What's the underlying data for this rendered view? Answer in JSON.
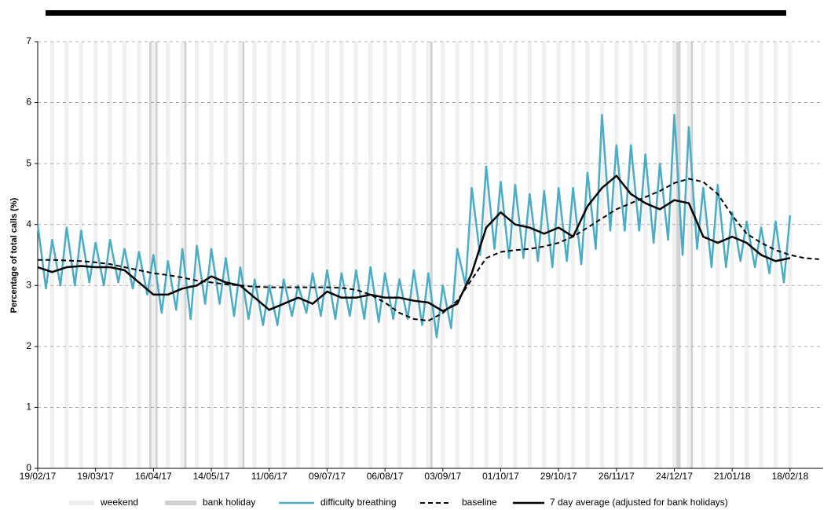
{
  "chart_data": {
    "type": "line",
    "y_label": "Percentage of total calls (%)",
    "ylim": [
      0,
      7
    ],
    "yticks": [
      0,
      1,
      2,
      3,
      4,
      5,
      6,
      7
    ],
    "grid": true,
    "xlim": [
      "2017-02-19",
      "2018-03-06"
    ],
    "xticks": [
      {
        "value": "2017-02-19",
        "label": "19/02/17"
      },
      {
        "value": "2017-03-19",
        "label": "19/03/17"
      },
      {
        "value": "2017-04-16",
        "label": "16/04/17"
      },
      {
        "value": "2017-05-14",
        "label": "14/05/17"
      },
      {
        "value": "2017-06-11",
        "label": "11/06/17"
      },
      {
        "value": "2017-07-09",
        "label": "09/07/17"
      },
      {
        "value": "2017-08-06",
        "label": "06/08/17"
      },
      {
        "value": "2017-09-03",
        "label": "03/09/17"
      },
      {
        "value": "2017-10-01",
        "label": "01/10/17"
      },
      {
        "value": "2017-10-29",
        "label": "29/10/17"
      },
      {
        "value": "2017-11-26",
        "label": "26/11/17"
      },
      {
        "value": "2017-12-24",
        "label": "24/12/17"
      },
      {
        "value": "2018-01-21",
        "label": "21/01/18"
      },
      {
        "value": "2018-02-18",
        "label": "18/02/18"
      }
    ],
    "shading": [
      {
        "name": "weekend",
        "color": "#f0f0f0",
        "x": [
          "2017-02-25",
          "2017-03-04",
          "2017-03-11",
          "2017-03-18",
          "2017-03-25",
          "2017-04-01",
          "2017-04-08",
          "2017-04-15",
          "2017-04-22",
          "2017-04-29",
          "2017-05-06",
          "2017-05-13",
          "2017-05-20",
          "2017-05-27",
          "2017-06-03",
          "2017-06-10",
          "2017-06-17",
          "2017-06-24",
          "2017-07-01",
          "2017-07-08",
          "2017-07-15",
          "2017-07-22",
          "2017-07-29",
          "2017-08-05",
          "2017-08-12",
          "2017-08-19",
          "2017-08-26",
          "2017-09-02",
          "2017-09-09",
          "2017-09-16",
          "2017-09-23",
          "2017-09-30",
          "2017-10-07",
          "2017-10-14",
          "2017-10-21",
          "2017-10-28",
          "2017-11-04",
          "2017-11-11",
          "2017-11-18",
          "2017-11-25",
          "2017-12-02",
          "2017-12-09",
          "2017-12-16",
          "2017-12-23",
          "2017-12-30",
          "2018-01-06",
          "2018-01-13",
          "2018-01-20",
          "2018-01-27",
          "2018-02-03",
          "2018-02-10",
          "2018-02-17"
        ]
      },
      {
        "name": "bank holiday",
        "color": "#d0d0d0",
        "x": [
          "2017-04-14",
          "2017-04-17",
          "2017-05-01",
          "2017-05-29",
          "2017-08-28",
          "2017-12-25",
          "2017-12-26",
          "2018-01-01"
        ]
      }
    ],
    "series": [
      {
        "name": "difficulty breathing",
        "color": "#4bacc6",
        "width": 2.5,
        "dash": false,
        "x": [
          "2017-02-19",
          "2017-02-23",
          "2017-02-26",
          "2017-03-02",
          "2017-03-05",
          "2017-03-09",
          "2017-03-12",
          "2017-03-16",
          "2017-03-19",
          "2017-03-23",
          "2017-03-26",
          "2017-03-30",
          "2017-04-02",
          "2017-04-06",
          "2017-04-09",
          "2017-04-13",
          "2017-04-16",
          "2017-04-20",
          "2017-04-23",
          "2017-04-27",
          "2017-04-30",
          "2017-05-04",
          "2017-05-07",
          "2017-05-11",
          "2017-05-14",
          "2017-05-18",
          "2017-05-21",
          "2017-05-25",
          "2017-05-28",
          "2017-06-01",
          "2017-06-04",
          "2017-06-08",
          "2017-06-11",
          "2017-06-15",
          "2017-06-18",
          "2017-06-22",
          "2017-06-25",
          "2017-06-29",
          "2017-07-02",
          "2017-07-06",
          "2017-07-09",
          "2017-07-13",
          "2017-07-16",
          "2017-07-20",
          "2017-07-23",
          "2017-07-27",
          "2017-07-30",
          "2017-08-03",
          "2017-08-06",
          "2017-08-10",
          "2017-08-13",
          "2017-08-17",
          "2017-08-20",
          "2017-08-24",
          "2017-08-27",
          "2017-08-31",
          "2017-09-03",
          "2017-09-07",
          "2017-09-10",
          "2017-09-14",
          "2017-09-17",
          "2017-09-21",
          "2017-09-24",
          "2017-09-28",
          "2017-10-01",
          "2017-10-05",
          "2017-10-08",
          "2017-10-12",
          "2017-10-15",
          "2017-10-19",
          "2017-10-22",
          "2017-10-26",
          "2017-10-29",
          "2017-11-02",
          "2017-11-05",
          "2017-11-09",
          "2017-11-12",
          "2017-11-16",
          "2017-11-19",
          "2017-11-23",
          "2017-11-26",
          "2017-11-30",
          "2017-12-03",
          "2017-12-07",
          "2017-12-10",
          "2017-12-14",
          "2017-12-17",
          "2017-12-21",
          "2017-12-24",
          "2017-12-28",
          "2017-12-31",
          "2018-01-04",
          "2018-01-07",
          "2018-01-11",
          "2018-01-14",
          "2018-01-18",
          "2018-01-21",
          "2018-01-25",
          "2018-01-28",
          "2018-02-01",
          "2018-02-04",
          "2018-02-08",
          "2018-02-11",
          "2018-02-15",
          "2018-02-18"
        ],
        "values": [
          4.0,
          2.95,
          3.75,
          3.0,
          3.95,
          3.0,
          3.9,
          3.05,
          3.7,
          3.0,
          3.75,
          3.05,
          3.6,
          2.95,
          3.55,
          2.85,
          3.5,
          2.55,
          3.4,
          2.6,
          3.6,
          2.45,
          3.65,
          2.7,
          3.6,
          2.7,
          3.45,
          2.5,
          3.3,
          2.45,
          3.1,
          2.35,
          3.0,
          2.35,
          3.1,
          2.5,
          3.0,
          2.55,
          3.2,
          2.5,
          3.25,
          2.45,
          3.2,
          2.5,
          3.25,
          2.45,
          3.3,
          2.4,
          3.2,
          2.45,
          3.1,
          2.45,
          3.25,
          2.35,
          3.2,
          2.15,
          3.0,
          2.3,
          3.6,
          3.0,
          4.6,
          3.5,
          4.95,
          3.6,
          4.7,
          3.45,
          4.65,
          3.45,
          4.5,
          3.4,
          4.55,
          3.3,
          4.6,
          3.4,
          4.6,
          3.35,
          4.85,
          3.6,
          5.8,
          3.9,
          5.3,
          3.9,
          5.3,
          3.9,
          5.15,
          3.7,
          5.0,
          3.75,
          5.8,
          3.5,
          5.6,
          3.6,
          4.6,
          3.3,
          4.65,
          3.3,
          4.2,
          3.4,
          4.05,
          3.3,
          3.95,
          3.2,
          4.05,
          3.05,
          4.15
        ]
      },
      {
        "name": "baseline",
        "color": "#000000",
        "width": 2,
        "dash": true,
        "x": [
          "2017-02-19",
          "2017-02-26",
          "2017-03-05",
          "2017-03-12",
          "2017-03-19",
          "2017-03-26",
          "2017-04-02",
          "2017-04-09",
          "2017-04-16",
          "2017-04-23",
          "2017-04-30",
          "2017-05-07",
          "2017-05-14",
          "2017-05-21",
          "2017-05-28",
          "2017-06-04",
          "2017-06-11",
          "2017-06-18",
          "2017-06-25",
          "2017-07-02",
          "2017-07-09",
          "2017-07-16",
          "2017-07-23",
          "2017-07-30",
          "2017-08-06",
          "2017-08-13",
          "2017-08-20",
          "2017-08-27",
          "2017-09-03",
          "2017-09-10",
          "2017-09-17",
          "2017-09-24",
          "2017-10-01",
          "2017-10-08",
          "2017-10-15",
          "2017-10-22",
          "2017-10-29",
          "2017-11-05",
          "2017-11-12",
          "2017-11-19",
          "2017-11-26",
          "2017-12-03",
          "2017-12-10",
          "2017-12-17",
          "2017-12-24",
          "2017-12-31",
          "2018-01-07",
          "2018-01-14",
          "2018-01-21",
          "2018-01-28",
          "2018-02-04",
          "2018-02-11",
          "2018-02-18",
          "2018-02-25",
          "2018-03-04"
        ],
        "values": [
          3.42,
          3.42,
          3.41,
          3.4,
          3.38,
          3.35,
          3.3,
          3.25,
          3.2,
          3.17,
          3.13,
          3.08,
          3.05,
          3.02,
          3.0,
          2.98,
          2.97,
          2.97,
          2.97,
          2.97,
          2.97,
          2.96,
          2.93,
          2.85,
          2.72,
          2.55,
          2.45,
          2.42,
          2.55,
          2.75,
          3.1,
          3.45,
          3.55,
          3.58,
          3.6,
          3.64,
          3.7,
          3.8,
          3.95,
          4.1,
          4.25,
          4.35,
          4.45,
          4.55,
          4.68,
          4.75,
          4.7,
          4.5,
          4.15,
          3.85,
          3.7,
          3.58,
          3.5,
          3.45,
          3.43
        ]
      },
      {
        "name": "7 day average (adjusted for bank holidays)",
        "color": "#000000",
        "width": 2.5,
        "dash": false,
        "x": [
          "2017-02-19",
          "2017-02-26",
          "2017-03-05",
          "2017-03-12",
          "2017-03-19",
          "2017-03-26",
          "2017-04-02",
          "2017-04-09",
          "2017-04-16",
          "2017-04-23",
          "2017-04-30",
          "2017-05-07",
          "2017-05-14",
          "2017-05-21",
          "2017-05-28",
          "2017-06-04",
          "2017-06-11",
          "2017-06-18",
          "2017-06-25",
          "2017-07-02",
          "2017-07-09",
          "2017-07-16",
          "2017-07-23",
          "2017-07-30",
          "2017-08-06",
          "2017-08-13",
          "2017-08-20",
          "2017-08-27",
          "2017-09-03",
          "2017-09-10",
          "2017-09-17",
          "2017-09-24",
          "2017-10-01",
          "2017-10-08",
          "2017-10-15",
          "2017-10-22",
          "2017-10-29",
          "2017-11-05",
          "2017-11-12",
          "2017-11-19",
          "2017-11-26",
          "2017-12-03",
          "2017-12-10",
          "2017-12-17",
          "2017-12-24",
          "2017-12-31",
          "2018-01-07",
          "2018-01-14",
          "2018-01-21",
          "2018-01-28",
          "2018-02-04",
          "2018-02-11",
          "2018-02-18"
        ],
        "values": [
          3.3,
          3.22,
          3.3,
          3.32,
          3.3,
          3.3,
          3.25,
          3.05,
          2.85,
          2.85,
          2.95,
          3.0,
          3.15,
          3.05,
          3.0,
          2.8,
          2.6,
          2.7,
          2.8,
          2.7,
          2.9,
          2.8,
          2.8,
          2.85,
          2.8,
          2.8,
          2.75,
          2.72,
          2.58,
          2.7,
          3.2,
          3.95,
          4.2,
          4.0,
          3.95,
          3.85,
          3.95,
          3.8,
          4.3,
          4.6,
          4.8,
          4.5,
          4.35,
          4.25,
          4.4,
          4.35,
          3.8,
          3.7,
          3.8,
          3.7,
          3.5,
          3.4,
          3.45
        ]
      }
    ]
  }
}
